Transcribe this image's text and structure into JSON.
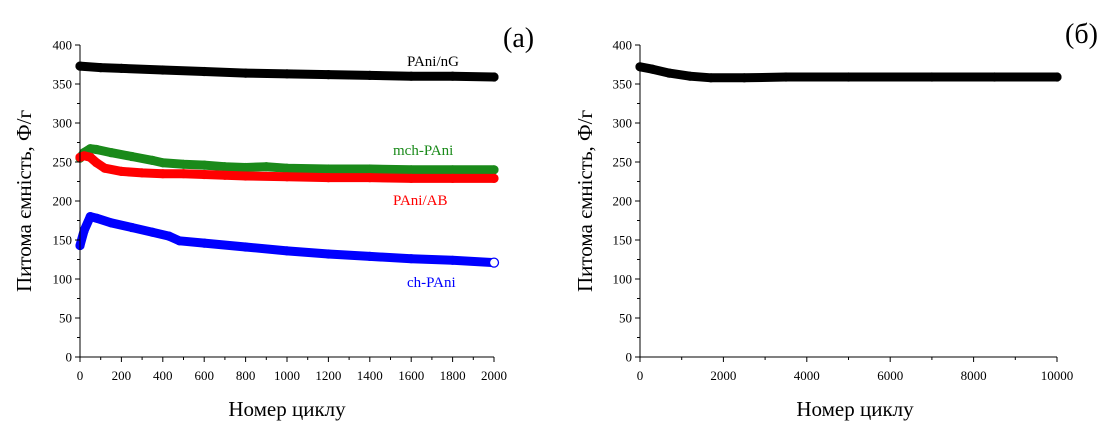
{
  "chart_data": [
    {
      "panel_label": "(a)",
      "type": "line",
      "xlabel": "Номер циклу",
      "ylabel": "Питома ємність, Ф/г",
      "xlim": [
        0,
        2000
      ],
      "ylim": [
        0,
        400
      ],
      "xticks": [
        0,
        200,
        400,
        600,
        800,
        1000,
        1200,
        1400,
        1600,
        1800,
        2000
      ],
      "yticks": [
        0,
        50,
        100,
        150,
        200,
        250,
        300,
        350,
        400
      ],
      "grid": false,
      "series": [
        {
          "name": "PAni/nG",
          "color": "#000000",
          "points": [
            [
              0,
              373
            ],
            [
              100,
              371
            ],
            [
              200,
              370
            ],
            [
              400,
              368
            ],
            [
              600,
              366
            ],
            [
              800,
              364
            ],
            [
              1000,
              363
            ],
            [
              1200,
              362
            ],
            [
              1400,
              361
            ],
            [
              1600,
              360
            ],
            [
              1800,
              360
            ],
            [
              2000,
              359
            ]
          ]
        },
        {
          "name": "mch-PAni",
          "color": "#1a8a1a",
          "points": [
            [
              0,
              255
            ],
            [
              20,
              262
            ],
            [
              50,
              267
            ],
            [
              80,
              266
            ],
            [
              150,
              262
            ],
            [
              250,
              257
            ],
            [
              350,
              252
            ],
            [
              400,
              249
            ],
            [
              500,
              247
            ],
            [
              600,
              246
            ],
            [
              700,
              244
            ],
            [
              800,
              243
            ],
            [
              900,
              244
            ],
            [
              1000,
              242
            ],
            [
              1200,
              241
            ],
            [
              1400,
              241
            ],
            [
              1600,
              240
            ],
            [
              1800,
              240
            ],
            [
              2000,
              240
            ]
          ]
        },
        {
          "name": "PAni/AB",
          "color": "#ff0000",
          "points": [
            [
              0,
              256
            ],
            [
              20,
              258
            ],
            [
              50,
              256
            ],
            [
              80,
              249
            ],
            [
              120,
              242
            ],
            [
              200,
              238
            ],
            [
              300,
              236
            ],
            [
              400,
              235
            ],
            [
              500,
              235
            ],
            [
              600,
              234
            ],
            [
              700,
              233
            ],
            [
              800,
              232
            ],
            [
              1000,
              231
            ],
            [
              1200,
              230
            ],
            [
              1400,
              230
            ],
            [
              1600,
              229
            ],
            [
              1800,
              229
            ],
            [
              2000,
              229
            ]
          ]
        },
        {
          "name": "ch-PAni",
          "color": "#0000ff",
          "points": [
            [
              0,
              143
            ],
            [
              20,
              162
            ],
            [
              50,
              180
            ],
            [
              80,
              178
            ],
            [
              150,
              172
            ],
            [
              250,
              166
            ],
            [
              350,
              160
            ],
            [
              430,
              155
            ],
            [
              480,
              149
            ],
            [
              600,
              146
            ],
            [
              800,
              141
            ],
            [
              1000,
              136
            ],
            [
              1200,
              132
            ],
            [
              1400,
              129
            ],
            [
              1600,
              126
            ],
            [
              1800,
              124
            ],
            [
              2000,
              121
            ]
          ]
        }
      ]
    },
    {
      "panel_label": "(б)",
      "type": "line",
      "xlabel": "Номер циклу",
      "ylabel": "Питома ємність, Ф/г",
      "xlim": [
        0,
        10000
      ],
      "ylim": [
        0,
        400
      ],
      "xticks": [
        0,
        2000,
        4000,
        6000,
        8000,
        10000
      ],
      "yticks": [
        0,
        50,
        100,
        150,
        200,
        250,
        300,
        350,
        400
      ],
      "grid": false,
      "series": [
        {
          "color": "#000000",
          "points": [
            [
              0,
              372
            ],
            [
              300,
              369
            ],
            [
              700,
              364
            ],
            [
              1200,
              360
            ],
            [
              1700,
              358
            ],
            [
              2500,
              358
            ],
            [
              3500,
              359
            ],
            [
              5000,
              359
            ],
            [
              7000,
              359
            ],
            [
              8500,
              359
            ],
            [
              10000,
              359
            ]
          ]
        }
      ]
    }
  ]
}
